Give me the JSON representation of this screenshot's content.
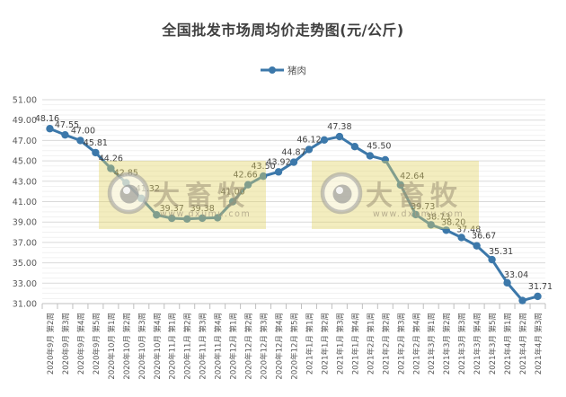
{
  "chart": {
    "title": "全国批发市场周均价走势图(元/公斤)",
    "legend": "猪肉"
  },
  "watermark": {
    "brand": "大畜牧",
    "url": "www.dxumu.com",
    "box_color": "#e2d466",
    "text_color": "#9c9277"
  },
  "chart_data": {
    "type": "line",
    "title": "全国批发市场周均价走势图(元/公斤)",
    "series_name": "猪肉",
    "categories": [
      "2020年9月 第2周",
      "2020年9月 第3周",
      "2020年9月 第4周",
      "2020年9月 第5周",
      "2020年10月 第1周",
      "2020年10月 第2周",
      "2020年10月 第3周",
      "2020年10月 第4周",
      "2020年11月 第1周",
      "2020年11月 第2周",
      "2020年11月 第3周",
      "2020年11月 第4周",
      "2020年12月 第1周",
      "2020年12月 第2周",
      "2020年12月 第3周",
      "2020年12月 第4周",
      "2020年12月 第5周",
      "2021年1月 第1周",
      "2021年1月 第2周",
      "2021年1月 第3周",
      "2021年1月 第4周",
      "2021年2月 第1周",
      "2021年2月 第2周",
      "2021年2月 第3周",
      "2021年2月 第4周",
      "2021年3月 第1周",
      "2021年3月 第2周",
      "2021年3月 第3周",
      "2021年3月 第4周",
      "2021年3月 第5周",
      "2021年4月 第1周",
      "2021年4月 第2周",
      "2021年4月 第3周"
    ],
    "values": [
      48.16,
      47.55,
      47.0,
      45.81,
      44.26,
      42.85,
      41.32,
      39.7,
      39.37,
      39.3,
      39.38,
      39.42,
      41.0,
      42.66,
      43.5,
      43.92,
      44.87,
      46.12,
      47.05,
      47.38,
      46.4,
      45.5,
      45.1,
      42.64,
      39.73,
      38.73,
      38.2,
      37.48,
      36.67,
      35.31,
      33.04,
      31.3,
      31.71
    ],
    "point_labels": [
      "48.16",
      "47.55",
      "47.00",
      "45.81",
      "44.26",
      "42.85",
      "41.32",
      null,
      "39.37",
      null,
      "39.38",
      null,
      "41.00",
      "42.66",
      "43.50",
      "43.92",
      "44.87",
      "46.12",
      null,
      "47.38",
      null,
      "45.50",
      null,
      "42.64",
      "39.73",
      "38.73",
      "38.20",
      "37.48",
      "36.67",
      "35.31",
      "33.04",
      null,
      "31.71"
    ],
    "label_offsets": {
      "0": [
        -3,
        0
      ],
      "1": [
        2,
        0
      ],
      "2": [
        3,
        0
      ],
      "6": [
        7,
        0
      ],
      "13": [
        -3,
        0
      ],
      "21": [
        10,
        0
      ],
      "23": [
        13,
        1
      ],
      "24": [
        8,
        2
      ],
      "25": [
        8,
        2
      ],
      "26": [
        8,
        2
      ],
      "27": [
        8,
        2
      ],
      "28": [
        8,
        0
      ],
      "29": [
        10,
        2
      ],
      "30": [
        10,
        2
      ],
      "32": [
        3,
        0
      ]
    },
    "ylim": [
      31,
      51
    ],
    "ytick_step": 2,
    "minor_gridline_step": 0.5,
    "ytick_format_decimals": 2,
    "grid": true,
    "legend_position": "top",
    "colors": {
      "line": "#3c78aa",
      "point_label": "#404040",
      "axis_text": "#595959",
      "gridline_major": "#d9d9d9",
      "gridline_minor": "#f1f1f1",
      "axis_line": "#bfbfbf"
    }
  }
}
